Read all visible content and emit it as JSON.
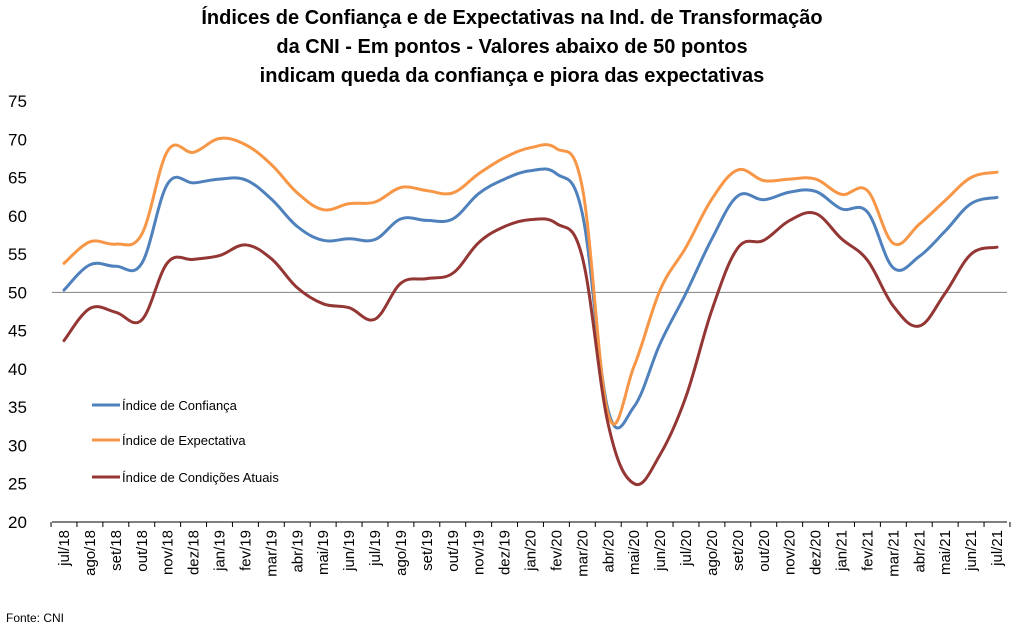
{
  "chart_data": {
    "type": "line",
    "title_lines": [
      "Índices de Confiança e de Expectativas na Ind. de Transformação",
      "da CNI - Em pontos - Valores abaixo de 50 pontos",
      "indicam queda da confiança e piora das expectativas"
    ],
    "categories": [
      "jul/18",
      "ago/18",
      "set/18",
      "out/18",
      "nov/18",
      "dez/18",
      "jan/19",
      "fev/19",
      "mar/19",
      "abr/19",
      "mai/19",
      "jun/19",
      "jul/19",
      "ago/19",
      "set/19",
      "out/19",
      "nov/19",
      "dez/19",
      "jan/20",
      "fev/20",
      "mar/20",
      "abr/20",
      "mai/20",
      "jun/20",
      "jul/20",
      "ago/20",
      "set/20",
      "out/20",
      "nov/20",
      "dez/20",
      "jan/21",
      "fev/21",
      "mar/21",
      "abr/21",
      "mai/21",
      "jun/21",
      "jul/21"
    ],
    "ylim": [
      20,
      75
    ],
    "yticks": [
      20,
      25,
      30,
      35,
      40,
      45,
      50,
      55,
      60,
      65,
      70,
      75
    ],
    "reference_line": 50,
    "legend_position": "left",
    "series": [
      {
        "name": "Índice de Confiança",
        "color": "#4f81bd",
        "values": [
          50.3,
          53.6,
          53.4,
          53.8,
          64.2,
          64.3,
          64.8,
          64.7,
          62.2,
          58.6,
          56.8,
          57.0,
          56.9,
          59.6,
          59.4,
          59.6,
          62.9,
          64.8,
          65.9,
          65.5,
          60.3,
          34.5,
          35.1,
          43.3,
          49.9,
          57.0,
          62.6,
          62.1,
          63.1,
          63.2,
          60.9,
          60.5,
          53.2,
          54.7,
          58.0,
          61.6,
          62.4
        ]
      },
      {
        "name": "Índice de Expectativa",
        "color": "#f79646",
        "values": [
          53.8,
          56.6,
          56.3,
          57.6,
          68.5,
          68.3,
          70.1,
          69.3,
          66.7,
          63.0,
          60.8,
          61.6,
          61.8,
          63.7,
          63.3,
          63.0,
          65.5,
          67.6,
          68.9,
          68.8,
          63.7,
          34.0,
          40.4,
          50.3,
          55.9,
          62.2,
          66.0,
          64.6,
          64.8,
          64.8,
          62.8,
          63.3,
          56.4,
          58.9,
          62.0,
          65.0,
          65.7
        ]
      },
      {
        "name": "Índice de Condições Atuais",
        "color": "#943634",
        "values": [
          43.7,
          47.9,
          47.4,
          46.4,
          53.9,
          54.3,
          54.8,
          56.2,
          54.4,
          50.6,
          48.5,
          48.0,
          46.5,
          51.2,
          51.8,
          52.5,
          56.5,
          58.6,
          59.5,
          59.0,
          54.6,
          32.7,
          25.0,
          28.8,
          36.4,
          47.7,
          55.8,
          56.8,
          59.4,
          60.3,
          57.0,
          54.2,
          48.2,
          45.6,
          49.9,
          55.0,
          55.9
        ]
      }
    ],
    "source": "Fonte: CNI"
  }
}
